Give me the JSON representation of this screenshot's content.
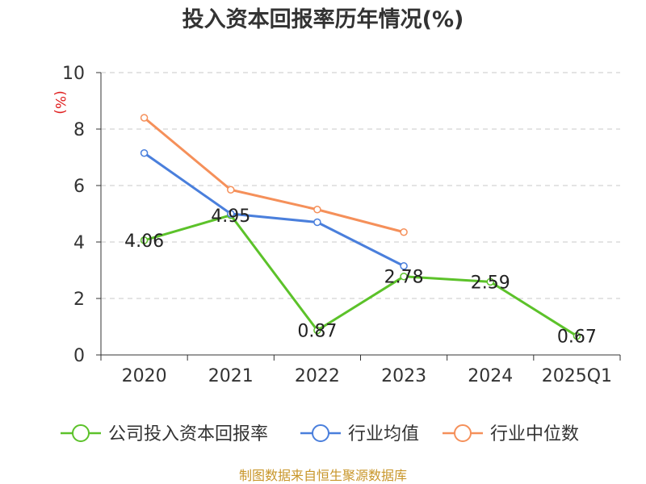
{
  "chart_data": {
    "type": "line",
    "title": "投入资本回报率历年情况(%)",
    "ylabel": "(%)",
    "xlabel": "",
    "categories": [
      "2020",
      "2021",
      "2022",
      "2023",
      "2024",
      "2025Q1"
    ],
    "ylim": [
      0,
      10
    ],
    "yticks": [
      0,
      2,
      4,
      6,
      8,
      10
    ],
    "grid": true,
    "legend_position": "bottom",
    "series": [
      {
        "name": "公司投入资本回报率",
        "color": "#5cc22a",
        "values": [
          4.06,
          4.95,
          0.87,
          2.78,
          2.59,
          0.67
        ],
        "labels": [
          "4.06",
          "4.95",
          "0.87",
          "2.78",
          "2.59",
          "0.67"
        ]
      },
      {
        "name": "行业均值",
        "color": "#4a7fdc",
        "values": [
          7.15,
          5.0,
          4.7,
          3.15,
          null,
          null
        ]
      },
      {
        "name": "行业中位数",
        "color": "#f5905a",
        "values": [
          8.4,
          5.85,
          5.15,
          4.35,
          null,
          null
        ]
      }
    ]
  },
  "source": "制图数据来自恒生聚源数据库"
}
